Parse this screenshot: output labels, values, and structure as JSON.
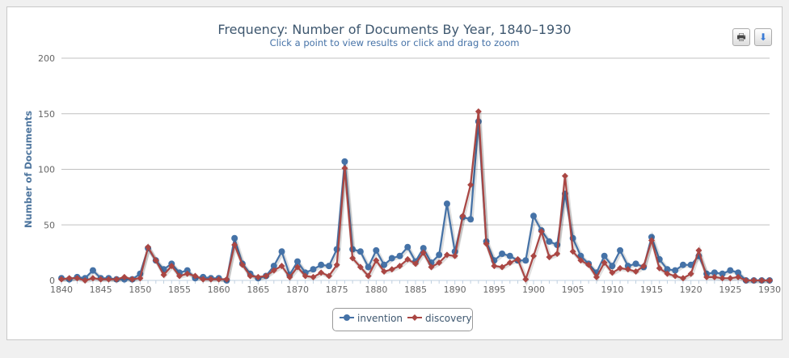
{
  "chart_data": {
    "type": "line",
    "title": "Frequency: Number of Documents By Year, 1840–1930",
    "subtitle": "Click a point to view results or click and drag to zoom",
    "xlabel": "",
    "ylabel": "Number of Documents",
    "xlim": [
      1840,
      1930
    ],
    "ylim": [
      0,
      200
    ],
    "yticks": [
      0,
      50,
      100,
      150,
      200
    ],
    "xticks": [
      1840,
      1845,
      1850,
      1855,
      1860,
      1865,
      1870,
      1875,
      1880,
      1885,
      1890,
      1895,
      1900,
      1905,
      1910,
      1915,
      1920,
      1925,
      1930
    ],
    "grid": true,
    "legend": "bottom-center",
    "x_start": 1840,
    "series": [
      {
        "name": "invention",
        "color": "#4572A7",
        "marker": "circle",
        "values": [
          2,
          1,
          3,
          2,
          9,
          2,
          2,
          1,
          1,
          1,
          6,
          29,
          18,
          10,
          15,
          7,
          9,
          2,
          3,
          2,
          2,
          0,
          38,
          15,
          6,
          2,
          4,
          13,
          26,
          5,
          17,
          7,
          10,
          14,
          13,
          28,
          107,
          28,
          26,
          12,
          27,
          14,
          20,
          22,
          30,
          17,
          29,
          16,
          23,
          69,
          26,
          57,
          55,
          143,
          35,
          18,
          24,
          22,
          18,
          18,
          58,
          45,
          35,
          32,
          78,
          38,
          22,
          15,
          7,
          22,
          13,
          27,
          13,
          15,
          12,
          39,
          19,
          10,
          9,
          14,
          14,
          22,
          6,
          7,
          6,
          9,
          7,
          0,
          0,
          0,
          0
        ]
      },
      {
        "name": "discovery",
        "color": "#AA4643",
        "marker": "diamond",
        "values": [
          1,
          2,
          2,
          0,
          2,
          1,
          1,
          1,
          3,
          1,
          2,
          30,
          18,
          5,
          13,
          4,
          6,
          4,
          1,
          1,
          1,
          1,
          32,
          14,
          4,
          3,
          4,
          9,
          13,
          3,
          12,
          4,
          3,
          7,
          4,
          14,
          101,
          20,
          12,
          4,
          18,
          8,
          10,
          13,
          19,
          15,
          25,
          12,
          16,
          23,
          22,
          58,
          86,
          152,
          33,
          13,
          12,
          16,
          19,
          1,
          22,
          44,
          21,
          24,
          94,
          26,
          18,
          14,
          3,
          16,
          7,
          11,
          10,
          8,
          13,
          36,
          11,
          6,
          4,
          2,
          6,
          27,
          3,
          3,
          2,
          2,
          3,
          0,
          0,
          0,
          0
        ]
      }
    ]
  },
  "buttons": {
    "print": "print-icon",
    "download": "download-icon"
  }
}
